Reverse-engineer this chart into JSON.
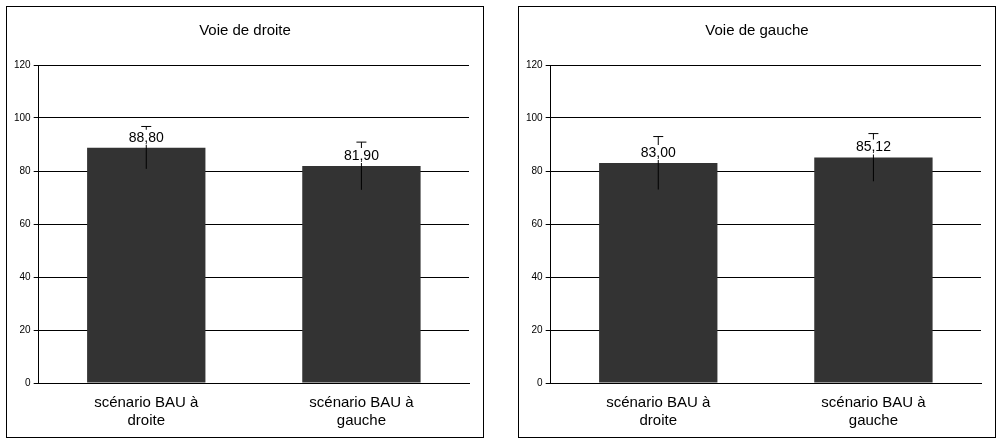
{
  "chart_data": [
    {
      "type": "bar",
      "title": "Voie de droite",
      "categories": [
        "scénario BAU à droite",
        "scénario BAU à gauche"
      ],
      "values": [
        88.8,
        81.9
      ],
      "value_labels": [
        "88,80",
        "81,90"
      ],
      "errors": [
        8,
        9
      ],
      "color": "#333333",
      "ylim": [
        0,
        120
      ],
      "yticks": [
        0,
        20,
        40,
        60,
        80,
        100,
        120
      ],
      "grid": "y"
    },
    {
      "type": "bar",
      "title": "Voie de gauche",
      "categories": [
        "scénario BAU à droite",
        "scénario BAU à gauche"
      ],
      "values": [
        83.0,
        85.12
      ],
      "value_labels": [
        "83,00",
        "85,12"
      ],
      "errors": [
        10,
        9
      ],
      "color": "#333333",
      "ylim": [
        0,
        120
      ],
      "yticks": [
        0,
        20,
        40,
        60,
        80,
        100,
        120
      ],
      "grid": "y"
    }
  ]
}
